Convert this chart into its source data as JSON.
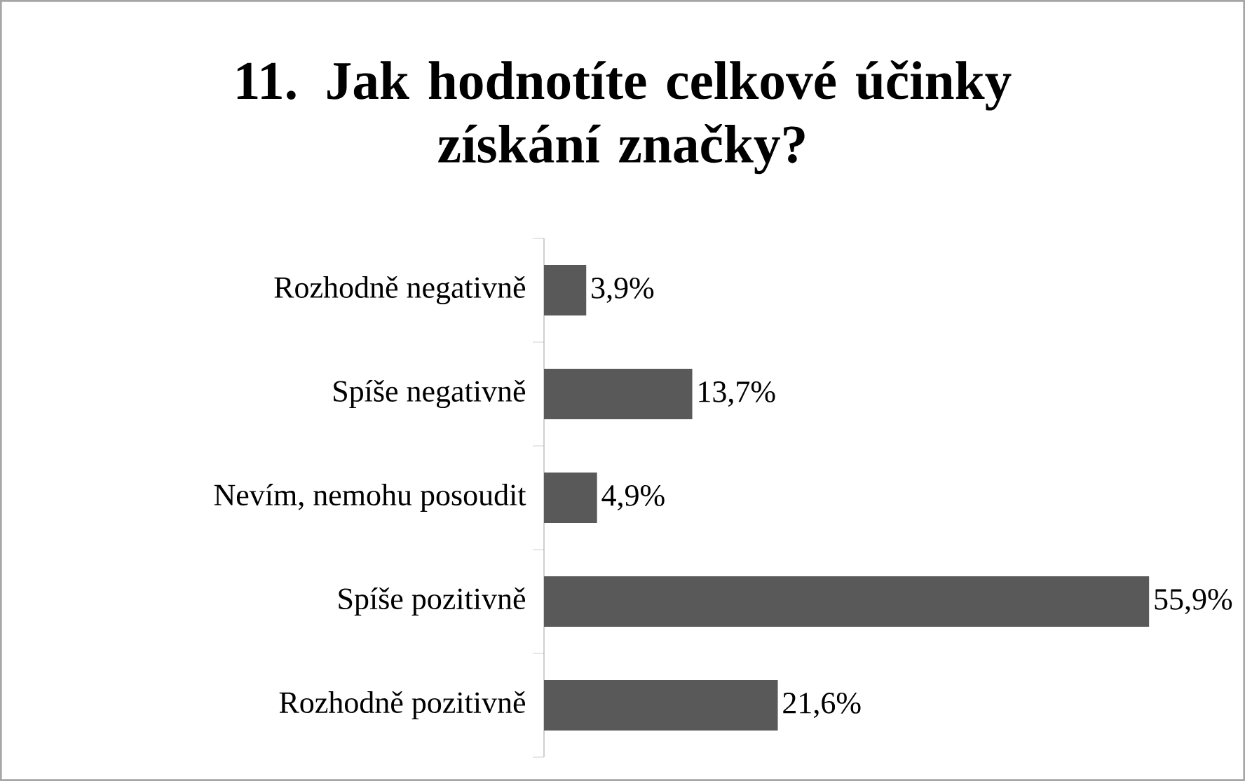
{
  "chart_data": {
    "type": "bar",
    "orientation": "horizontal",
    "title": "11. Jak hodnotíte celkové účinky získání značky?",
    "categories": [
      "Rozhodně negativně",
      "Spíše negativně",
      "Nevím, nemohu posoudit",
      "Spíše pozitivně",
      "Rozhodně pozitivně"
    ],
    "values": [
      3.9,
      13.7,
      4.9,
      55.9,
      21.6
    ],
    "value_labels": [
      "3,9%",
      "13,7%",
      "4,9%",
      "55,9%",
      "21,6%"
    ],
    "color": "#595959"
  }
}
